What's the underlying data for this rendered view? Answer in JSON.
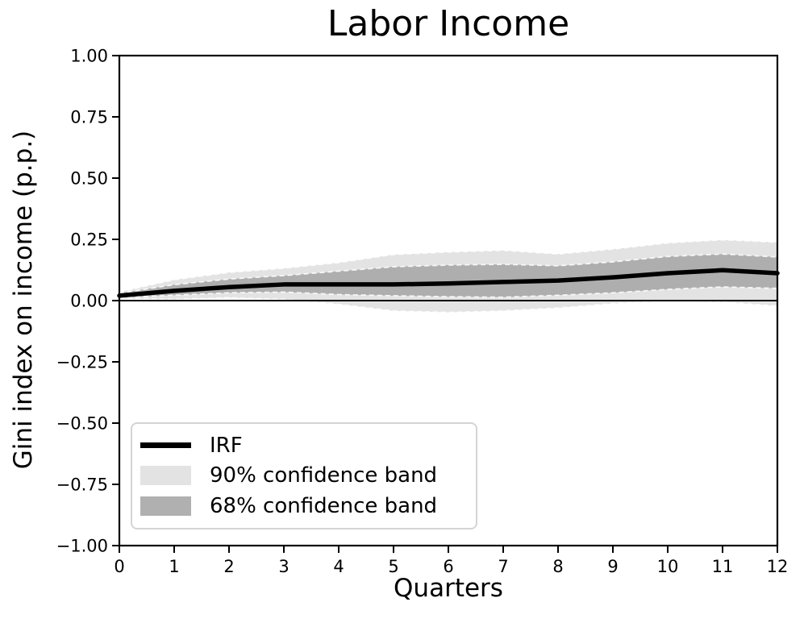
{
  "title": "Labor Income",
  "xlabel": "Quarters",
  "ylabel": "Gini index on income (p.p.)",
  "legend": {
    "items": [
      {
        "label": "IRF",
        "swatch": "line",
        "color": "#000000"
      },
      {
        "label": "90% confidence band",
        "swatch": "patch",
        "color": "#e3e3e3"
      },
      {
        "label": "68% confidence band",
        "swatch": "patch",
        "color": "#b0b0b0"
      }
    ]
  },
  "chart_data": {
    "type": "line",
    "title": "Labor Income",
    "xlabel": "Quarters",
    "ylabel": "Gini index on income (p.p.)",
    "xlim": [
      0,
      12
    ],
    "ylim": [
      -1.0,
      1.0
    ],
    "xticks": [
      "0",
      "1",
      "2",
      "3",
      "4",
      "5",
      "6",
      "7",
      "8",
      "9",
      "10",
      "11",
      "12"
    ],
    "xtick_values": [
      0,
      1,
      2,
      3,
      4,
      5,
      6,
      7,
      8,
      9,
      10,
      11,
      12
    ],
    "yticks": [
      "1.00",
      "0.75",
      "0.50",
      "0.25",
      "0.00",
      "−0.25",
      "−0.50",
      "−0.75",
      "−1.00"
    ],
    "ytick_values": [
      1.0,
      0.75,
      0.5,
      0.25,
      0.0,
      -0.25,
      -0.5,
      -0.75,
      -1.0
    ],
    "grid": false,
    "legend_position": "lower left",
    "x": [
      0,
      1,
      2,
      3,
      4,
      5,
      6,
      7,
      8,
      9,
      10,
      11,
      12
    ],
    "series": [
      {
        "name": "IRF",
        "values": [
          0.02,
          0.04,
          0.055,
          0.066,
          0.066,
          0.066,
          0.07,
          0.076,
          0.082,
          0.095,
          0.112,
          0.124,
          0.112
        ]
      },
      {
        "name": "68% band upper",
        "values": [
          0.03,
          0.065,
          0.088,
          0.102,
          0.12,
          0.138,
          0.145,
          0.148,
          0.142,
          0.158,
          0.18,
          0.19,
          0.178
        ]
      },
      {
        "name": "68% band lower",
        "values": [
          0.012,
          0.022,
          0.032,
          0.035,
          0.025,
          0.02,
          0.016,
          0.014,
          0.022,
          0.032,
          0.046,
          0.056,
          0.05
        ]
      },
      {
        "name": "90% band upper",
        "values": [
          0.035,
          0.085,
          0.115,
          0.132,
          0.155,
          0.188,
          0.198,
          0.205,
          0.19,
          0.21,
          0.235,
          0.248,
          0.238
        ]
      },
      {
        "name": "90% band lower",
        "values": [
          0.008,
          0.005,
          0.012,
          0.005,
          -0.015,
          -0.042,
          -0.048,
          -0.042,
          -0.03,
          -0.012,
          -0.002,
          -0.006,
          -0.022
        ]
      }
    ],
    "zero_line": 0.0,
    "colors": {
      "irf_line": "#000000",
      "band_90": "#e3e3e3",
      "band_68": "#aeaeae",
      "band_edge_dash": "#ffffff",
      "axis": "#000000"
    }
  }
}
